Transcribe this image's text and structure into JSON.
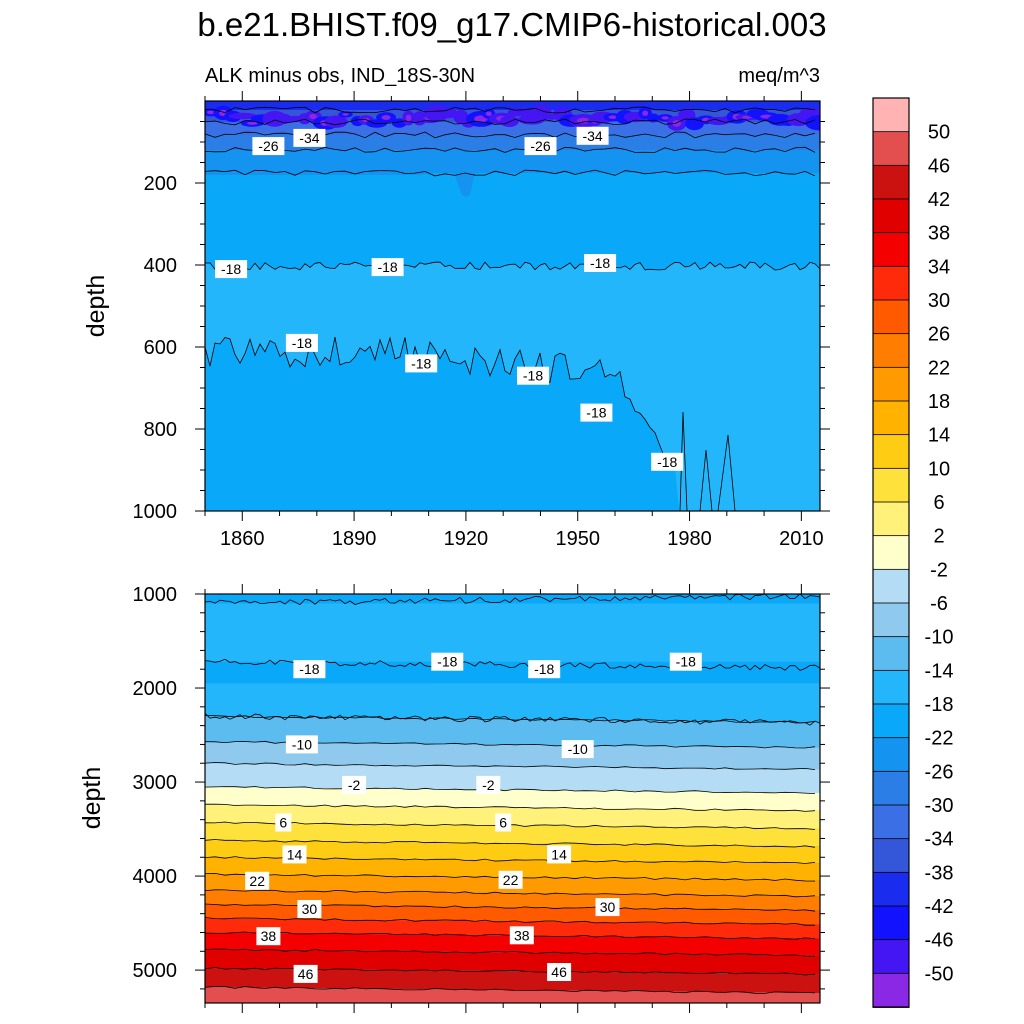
{
  "title": "b.e21.BHIST.f09_g17.CMIP6-historical.003",
  "subtitle_left": "ALK minus obs, IND_18S-30N",
  "subtitle_right": "meq/m^3",
  "colorbar": {
    "labels": [
      "50",
      "46",
      "42",
      "38",
      "34",
      "30",
      "26",
      "22",
      "18",
      "14",
      "10",
      "6",
      "2",
      "-2",
      "-6",
      "-10",
      "-14",
      "-18",
      "-22",
      "-26",
      "-30",
      "-34",
      "-38",
      "-42",
      "-46",
      "-50"
    ],
    "colors": [
      "#ffb3b3",
      "#e34f4f",
      "#cc1111",
      "#e00000",
      "#f40000",
      "#ff2a0a",
      "#ff5a00",
      "#ff7d00",
      "#ff9a00",
      "#ffb300",
      "#ffcc14",
      "#ffe13c",
      "#fff17a",
      "#ffffcc",
      "#b4dcf4",
      "#8fc9ee",
      "#5cbcf0",
      "#23b6fa",
      "#0aa8f8",
      "#1493f0",
      "#2a7ee6",
      "#3a6fe6",
      "#3456d8",
      "#1a2cee",
      "#1212ff",
      "#4416f4",
      "#8a28e6"
    ]
  },
  "chart_data": [
    {
      "type": "contour",
      "panel": "top",
      "xlabel": "",
      "ylabel": "depth",
      "xlim": [
        1850,
        2015
      ],
      "ylim": [
        1000,
        0
      ],
      "x_ticks": [
        "1860",
        "1890",
        "1920",
        "1950",
        "1980",
        "2010"
      ],
      "y_ticks": [
        "200",
        "400",
        "600",
        "800",
        "1000"
      ],
      "contour_labels": [
        {
          "text": "-34",
          "x": 1878,
          "y": 90
        },
        {
          "text": "-26",
          "x": 1867,
          "y": 110
        },
        {
          "text": "-26",
          "x": 1940,
          "y": 110
        },
        {
          "text": "-34",
          "x": 1954,
          "y": 85
        },
        {
          "text": "-18",
          "x": 1857,
          "y": 410
        },
        {
          "text": "-18",
          "x": 1899,
          "y": 405
        },
        {
          "text": "-18",
          "x": 1956,
          "y": 395
        },
        {
          "text": "-18",
          "x": 1876,
          "y": 590
        },
        {
          "text": "-18",
          "x": 1908,
          "y": 640
        },
        {
          "text": "-18",
          "x": 1938,
          "y": 670
        },
        {
          "text": "-18",
          "x": 1955,
          "y": 760
        },
        {
          "text": "-18",
          "x": 1974,
          "y": 880
        }
      ]
    },
    {
      "type": "contour",
      "panel": "bottom",
      "xlabel": "",
      "ylabel": "depth",
      "xlim": [
        1850,
        2015
      ],
      "ylim": [
        5350,
        1000
      ],
      "y_ticks": [
        "1000",
        "2000",
        "3000",
        "4000",
        "5000"
      ],
      "contour_labels": [
        {
          "text": "-18",
          "x": 1878,
          "y": 1800
        },
        {
          "text": "-18",
          "x": 1915,
          "y": 1720
        },
        {
          "text": "-18",
          "x": 1941,
          "y": 1800
        },
        {
          "text": "-18",
          "x": 1979,
          "y": 1720
        },
        {
          "text": "-10",
          "x": 1876,
          "y": 2600
        },
        {
          "text": "-10",
          "x": 1950,
          "y": 2650
        },
        {
          "text": "-2",
          "x": 1890,
          "y": 3030
        },
        {
          "text": "-2",
          "x": 1926,
          "y": 3030
        },
        {
          "text": "6",
          "x": 1871,
          "y": 3430
        },
        {
          "text": "6",
          "x": 1930,
          "y": 3430
        },
        {
          "text": "14",
          "x": 1874,
          "y": 3770
        },
        {
          "text": "14",
          "x": 1945,
          "y": 3770
        },
        {
          "text": "22",
          "x": 1864,
          "y": 4050
        },
        {
          "text": "22",
          "x": 1932,
          "y": 4040
        },
        {
          "text": "30",
          "x": 1878,
          "y": 4350
        },
        {
          "text": "30",
          "x": 1958,
          "y": 4330
        },
        {
          "text": "38",
          "x": 1867,
          "y": 4640
        },
        {
          "text": "38",
          "x": 1935,
          "y": 4630
        },
        {
          "text": "46",
          "x": 1877,
          "y": 5040
        },
        {
          "text": "46",
          "x": 1945,
          "y": 5020
        }
      ]
    }
  ]
}
